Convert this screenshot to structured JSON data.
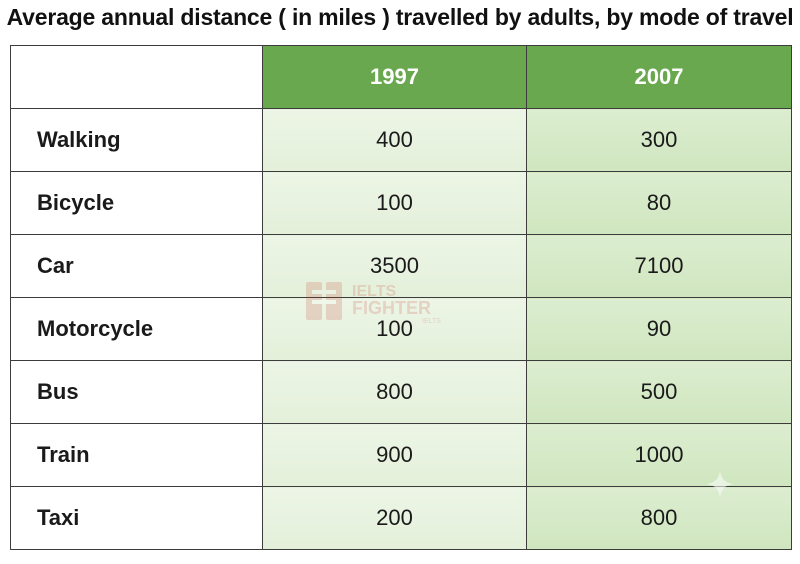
{
  "chart_data": {
    "type": "table",
    "title": "Average annual distance ( in miles ) travelled by adults, by mode of travel",
    "columns": [
      "",
      "1997",
      "2007"
    ],
    "rows": [
      {
        "label": "Walking",
        "values": [
          "400",
          "300"
        ]
      },
      {
        "label": "Bicycle",
        "values": [
          "100",
          "80"
        ]
      },
      {
        "label": "Car",
        "values": [
          "3500",
          "7100"
        ]
      },
      {
        "label": "Motorcycle",
        "values": [
          "100",
          "90"
        ]
      },
      {
        "label": "Bus",
        "values": [
          "800",
          "500"
        ]
      },
      {
        "label": "Train",
        "values": [
          "900",
          "1000"
        ]
      },
      {
        "label": "Taxi",
        "values": [
          "200",
          "800"
        ]
      }
    ]
  },
  "watermark": {
    "line1": "IELTS",
    "line2": "FIGHTER",
    "line3": "IELTS"
  },
  "colors": {
    "header_green": "#6aa84f",
    "cell_1997": "#e8f2df",
    "cell_2007": "#d5e9c6",
    "border": "#3c3c3c"
  }
}
